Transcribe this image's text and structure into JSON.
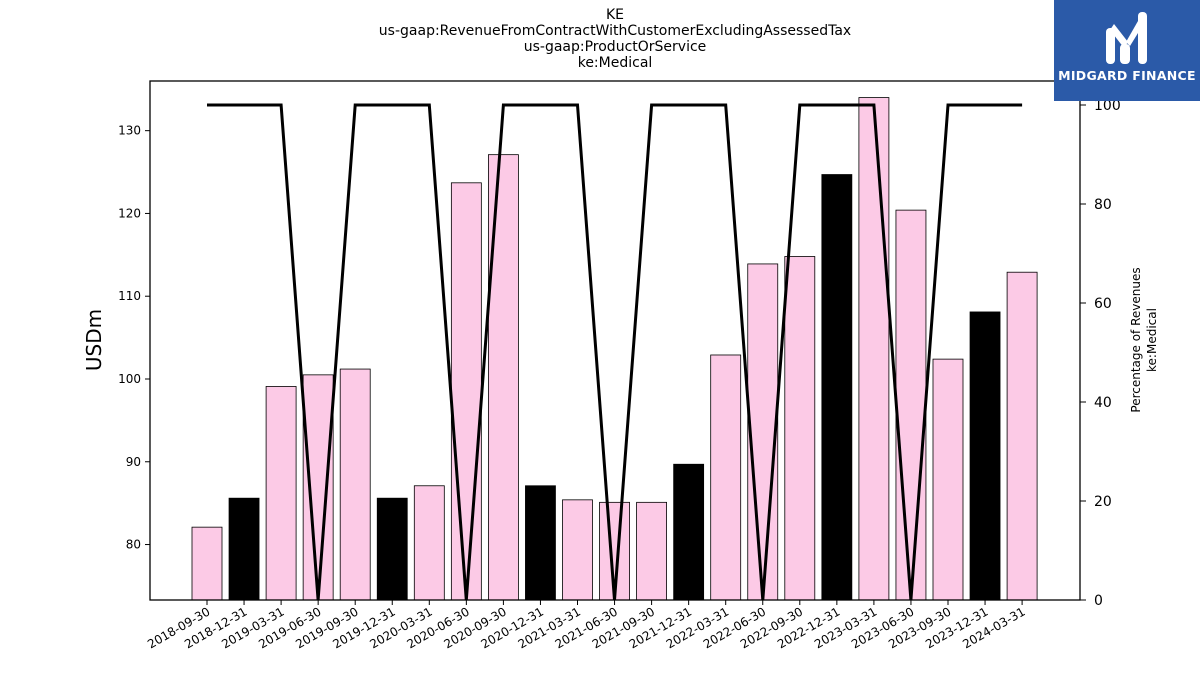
{
  "chart_data": {
    "type": "bar",
    "title_lines": [
      "KE",
      "us-gaap:RevenueFromContractWithCustomerExcludingAssessedTax",
      "us-gaap:ProductOrService",
      "ke:Medical"
    ],
    "ylabel": "USDm",
    "y2label_lines": [
      "Percentage of Revenues",
      "ke:Medical"
    ],
    "categories": [
      "2018-09-30",
      "2018-12-31",
      "2019-03-31",
      "2019-06-30",
      "2019-09-30",
      "2019-12-31",
      "2020-03-31",
      "2020-06-30",
      "2020-09-30",
      "2020-12-31",
      "2021-03-31",
      "2021-06-30",
      "2021-09-30",
      "2021-12-31",
      "2022-03-31",
      "2022-06-30",
      "2022-09-30",
      "2022-12-31",
      "2023-03-31",
      "2023-06-30",
      "2023-09-30",
      "2023-12-31",
      "2024-03-31"
    ],
    "series": [
      {
        "values": [
          82.1,
          85.6,
          99.1,
          100.5,
          101.2,
          85.6,
          87.1,
          123.7,
          127.1,
          87.1,
          85.4,
          85.1,
          85.1,
          89.7,
          102.9,
          113.9,
          114.8,
          124.7,
          134.0,
          120.4,
          102.4,
          108.1,
          112.9
        ],
        "colors": [
          "#fccae6",
          "#000000",
          "#fccae6",
          "#fccae6",
          "#fccae6",
          "#000000",
          "#fccae6",
          "#fccae6",
          "#fccae6",
          "#000000",
          "#fccae6",
          "#fccae6",
          "#fccae6",
          "#000000",
          "#fccae6",
          "#fccae6",
          "#fccae6",
          "#000000",
          "#fccae6",
          "#fccae6",
          "#fccae6",
          "#000000",
          "#fccae6"
        ]
      },
      {
        "axis": "right",
        "type": "line",
        "color": "#000000",
        "values": [
          100,
          100,
          100,
          0,
          100,
          100,
          100,
          0,
          100,
          100,
          100,
          0,
          100,
          100,
          100,
          0,
          100,
          100,
          100,
          0,
          100,
          100,
          100
        ]
      }
    ],
    "ylim": [
      73.3,
      136.0
    ],
    "yticks": [
      80,
      90,
      100,
      110,
      120,
      130
    ],
    "y2lim": [
      0,
      100
    ],
    "y2ticks": [
      0,
      20,
      40,
      60,
      80,
      100
    ],
    "grid": false
  },
  "logo": {
    "text": "MIDGARD FINANCE"
  }
}
